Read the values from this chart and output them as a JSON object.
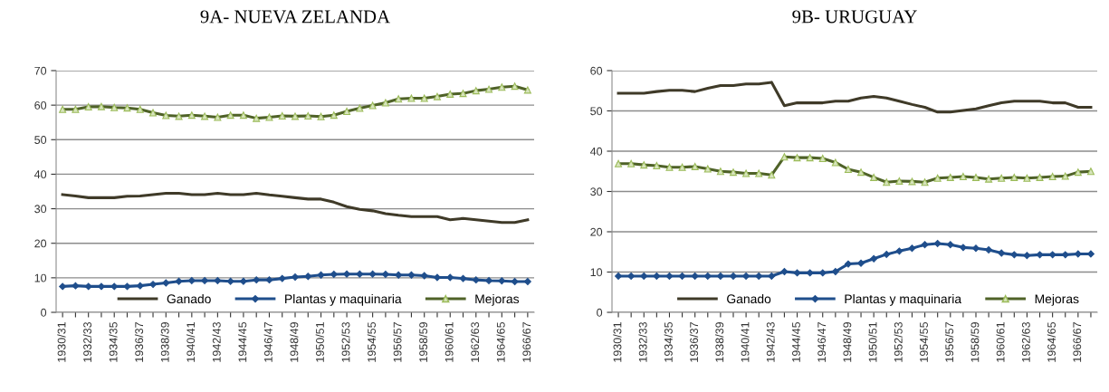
{
  "chart_data": [
    {
      "type": "line",
      "title": "9A- NUEVA ZELANDA",
      "categories": [
        "1930/31",
        null,
        "1932/33",
        null,
        "1934/35",
        null,
        "1936/37",
        null,
        "1938/39",
        null,
        "1940/41",
        null,
        "1942/43",
        null,
        "1944/45",
        null,
        "1946/47",
        null,
        "1948/49",
        null,
        "1950/51",
        null,
        "1952/53",
        null,
        "1954/55",
        null,
        "1956/57",
        null,
        "1958/59",
        null,
        "1960/61",
        null,
        "1962/63",
        null,
        "1964/65",
        null,
        "1966/67"
      ],
      "series": [
        {
          "name": "Ganado",
          "color": "#3f3a28",
          "marker": "none",
          "values": [
            34.1,
            33.7,
            33.2,
            33.2,
            33.2,
            33.6,
            33.7,
            34.1,
            34.5,
            34.5,
            34.1,
            34.1,
            34.5,
            34.1,
            34.1,
            34.5,
            34.0,
            33.6,
            33.2,
            32.8,
            32.8,
            31.9,
            30.6,
            29.8,
            29.4,
            28.6,
            28.1,
            27.7,
            27.7,
            27.7,
            26.8,
            27.2,
            26.8,
            26.4,
            26.0,
            26.0,
            26.8
          ]
        },
        {
          "name": "Plantas y maquinaria",
          "color": "#1f4e8c",
          "marker": "diamond",
          "values": [
            7.5,
            7.7,
            7.5,
            7.5,
            7.5,
            7.5,
            7.7,
            8.1,
            8.5,
            9.0,
            9.2,
            9.2,
            9.2,
            9.0,
            9.0,
            9.4,
            9.4,
            9.8,
            10.2,
            10.4,
            10.8,
            11.0,
            11.1,
            11.1,
            11.1,
            11.0,
            10.8,
            10.8,
            10.6,
            10.1,
            10.1,
            9.8,
            9.4,
            9.2,
            9.1,
            8.9,
            8.9
          ]
        },
        {
          "name": "Mejoras",
          "color": "#4f6228",
          "marker": "triangle",
          "values": [
            58.8,
            58.8,
            59.5,
            59.6,
            59.3,
            59.2,
            58.8,
            57.8,
            57.0,
            56.8,
            57.1,
            56.8,
            56.5,
            57.1,
            57.1,
            56.2,
            56.5,
            56.9,
            56.8,
            56.9,
            56.7,
            57.1,
            58.2,
            59.1,
            59.9,
            60.7,
            61.8,
            62.0,
            62.0,
            62.5,
            63.2,
            63.4,
            64.2,
            64.6,
            65.2,
            65.5,
            64.4
          ]
        }
      ],
      "ylim": [
        0,
        70
      ],
      "yticks": [
        0,
        10,
        20,
        30,
        40,
        50,
        60,
        70
      ],
      "grid": "y",
      "legend": "bottom"
    },
    {
      "type": "line",
      "title": "9B- URUGUAY",
      "categories": [
        "1930/31",
        null,
        "1932/33",
        null,
        "1934/35",
        null,
        "1936/37",
        null,
        "1938/39",
        null,
        "1940/41",
        null,
        "1942/43",
        null,
        "1944/45",
        null,
        "1946/47",
        null,
        "1948/49",
        null,
        "1950/51",
        null,
        "1952/53",
        null,
        "1954/55",
        null,
        "1956/57",
        null,
        "1958/59",
        null,
        "1960/61",
        null,
        "1962/63",
        null,
        "1964/65",
        null,
        "1966/67",
        null
      ],
      "series": [
        {
          "name": "Ganado",
          "color": "#3f3a28",
          "marker": "none",
          "values": [
            54.4,
            54.4,
            54.4,
            54.8,
            55.1,
            55.1,
            54.8,
            55.6,
            56.3,
            56.3,
            56.7,
            56.7,
            57.1,
            51.3,
            52.0,
            52.0,
            52.0,
            52.4,
            52.4,
            53.2,
            53.6,
            53.2,
            52.4,
            51.6,
            50.9,
            49.7,
            49.7,
            50.1,
            50.5,
            51.3,
            52.0,
            52.4,
            52.4,
            52.4,
            52.0,
            52.0,
            50.9,
            50.9
          ]
        },
        {
          "name": "Plantas y maquinaria",
          "color": "#1f4e8c",
          "marker": "diamond",
          "values": [
            9,
            9,
            9,
            9,
            9,
            9,
            9,
            9,
            9,
            9,
            9,
            9,
            9,
            10.1,
            9.8,
            9.8,
            9.8,
            10.1,
            12.0,
            12.2,
            13.3,
            14.4,
            15.2,
            15.9,
            16.8,
            17.1,
            16.8,
            16.1,
            15.9,
            15.5,
            14.7,
            14.3,
            14.1,
            14.3,
            14.3,
            14.3,
            14.5,
            14.5
          ]
        },
        {
          "name": "Mejoras",
          "color": "#4f6228",
          "marker": "triangle",
          "values": [
            36.9,
            36.9,
            36.6,
            36.4,
            36.0,
            36.0,
            36.2,
            35.6,
            35.0,
            34.8,
            34.5,
            34.5,
            34.1,
            38.6,
            38.4,
            38.4,
            38.2,
            37.2,
            35.5,
            34.8,
            33.5,
            32.3,
            32.6,
            32.5,
            32.3,
            33.3,
            33.5,
            33.7,
            33.5,
            33.1,
            33.3,
            33.5,
            33.3,
            33.5,
            33.7,
            33.8,
            34.8,
            35.0
          ]
        }
      ],
      "ylim": [
        0,
        60
      ],
      "yticks": [
        0,
        10,
        20,
        30,
        40,
        50,
        60
      ],
      "grid": "y",
      "legend": "bottom"
    }
  ]
}
